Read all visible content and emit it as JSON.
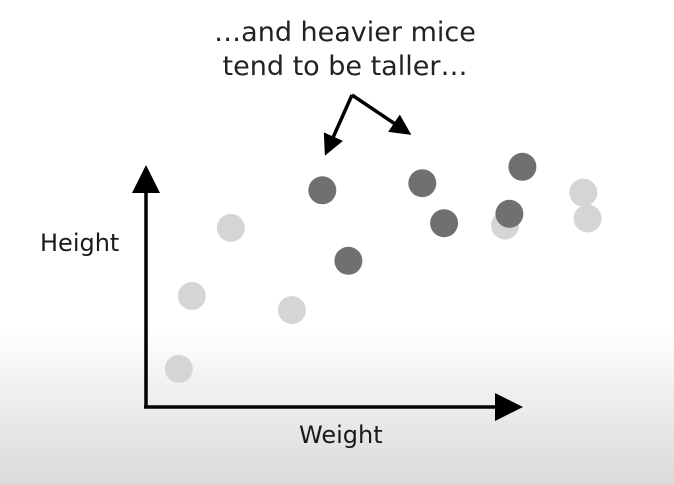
{
  "annotation": {
    "line1": "…and heavier mice",
    "line2": "tend to be taller…"
  },
  "chart_data": {
    "type": "scatter",
    "title": "",
    "xlabel": "Weight",
    "ylabel": "Height",
    "xlim": [
      0,
      100
    ],
    "ylim": [
      0,
      100
    ],
    "grid": false,
    "series": [
      {
        "highlighted": false,
        "color": "#d5d5d5",
        "points": [
          {
            "x": 5,
            "y": 9
          },
          {
            "x": 8,
            "y": 40
          },
          {
            "x": 17,
            "y": 69
          },
          {
            "x": 31,
            "y": 34
          },
          {
            "x": 98,
            "y": 84
          },
          {
            "x": 99,
            "y": 73
          },
          {
            "x": 80,
            "y": 70
          }
        ]
      },
      {
        "highlighted": true,
        "color": "#707070",
        "points": [
          {
            "x": 38,
            "y": 85
          },
          {
            "x": 44,
            "y": 55
          },
          {
            "x": 61,
            "y": 88
          },
          {
            "x": 66,
            "y": 71
          },
          {
            "x": 81,
            "y": 75
          },
          {
            "x": 84,
            "y": 95
          }
        ]
      }
    ]
  }
}
